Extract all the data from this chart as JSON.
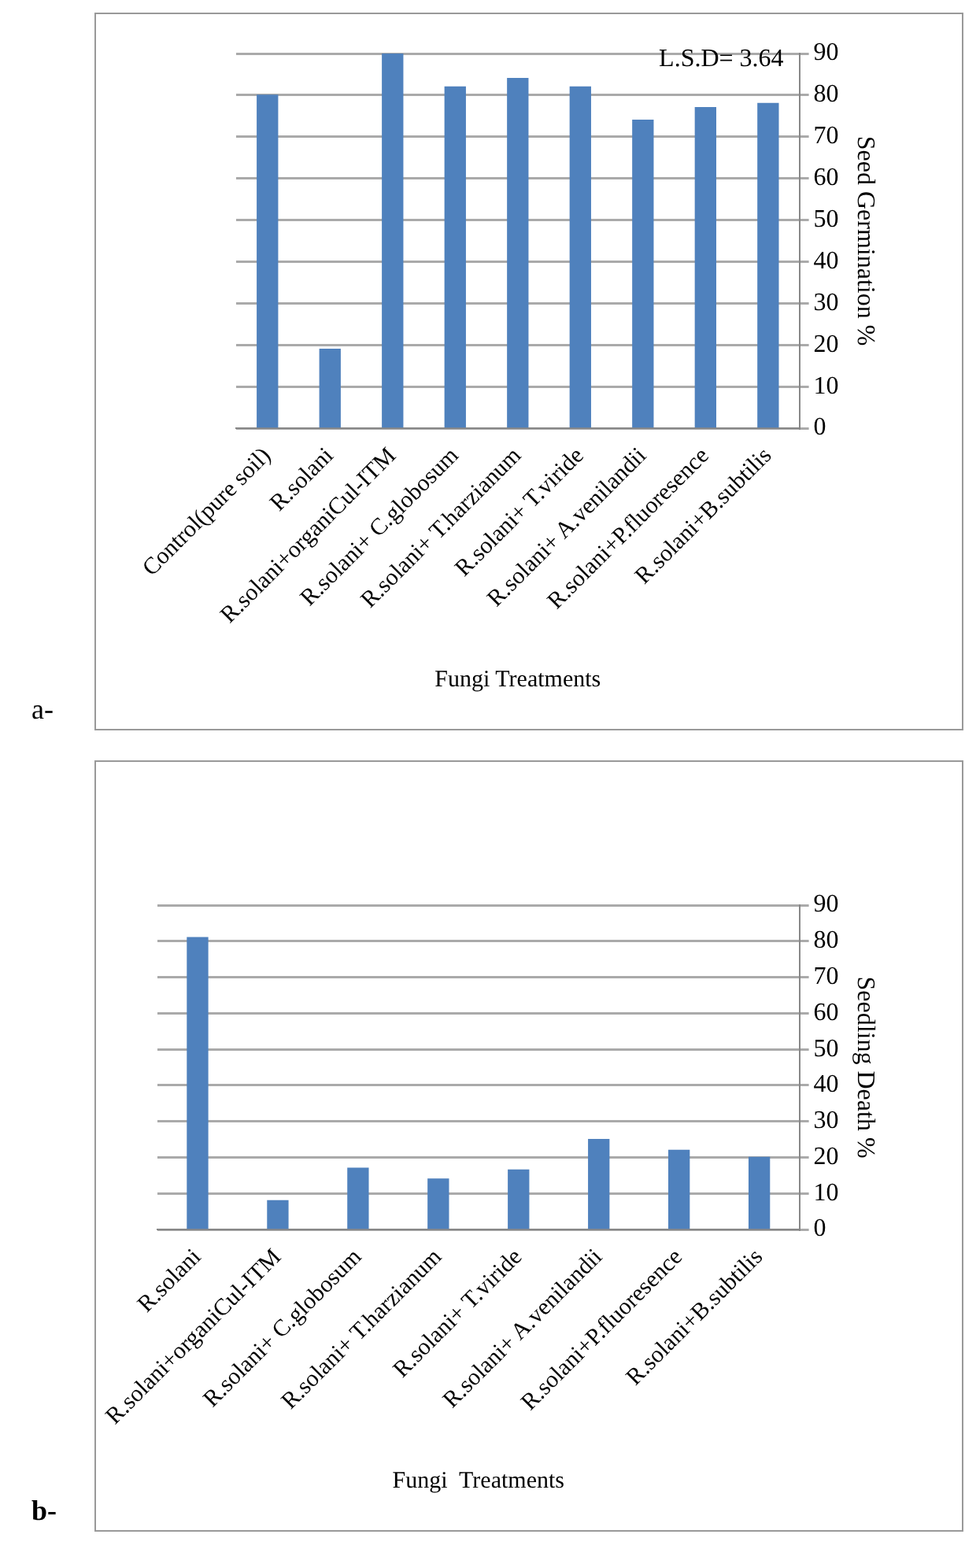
{
  "chart_data": [
    {
      "type": "bar",
      "ylabel": "Seed Germination %",
      "xlabel": "Fungi Treatments",
      "categories": [
        "Control(pure soil)",
        "R.solani",
        "R.solani+organiCul-ITM",
        "R.solani+ C.globosum",
        "R.solani+ T.harzianum",
        "R.solani+ T.viride",
        "R.solani+ A.venilandii",
        "R.solani+P.fluoresence",
        "R.solani+B.subtilis"
      ],
      "values": [
        80,
        19,
        90,
        82,
        84,
        82,
        74,
        77,
        78
      ],
      "color": "#4f81bd",
      "ylim": [
        0,
        90
      ],
      "yticks": [
        0,
        10,
        20,
        30,
        40,
        50,
        60,
        70,
        80,
        90
      ],
      "grid": "y",
      "annotations": [
        "L.S.D= 3.64",
        "a-"
      ]
    },
    {
      "type": "bar",
      "ylabel": "Seedling Death %",
      "xlabel": "Fungi  Treatments",
      "categories": [
        "R.solani",
        "R.solani+organiCul-ITM",
        "R.solani+ C.globosum",
        "R.solani+ T.harzianum",
        "R.solani+ T.viride",
        "R.solani+ A.venilandii",
        "R.solani+P.fluoresence",
        "R.solani+B.subtilis"
      ],
      "values": [
        81,
        8,
        17,
        14,
        16.5,
        25,
        22,
        20
      ],
      "color": "#4f81bd",
      "ylim": [
        0,
        90
      ],
      "yticks": [
        0,
        10,
        20,
        30,
        40,
        50,
        60,
        70,
        80,
        90
      ],
      "grid": "y",
      "annotations": [
        "b-"
      ]
    }
  ]
}
